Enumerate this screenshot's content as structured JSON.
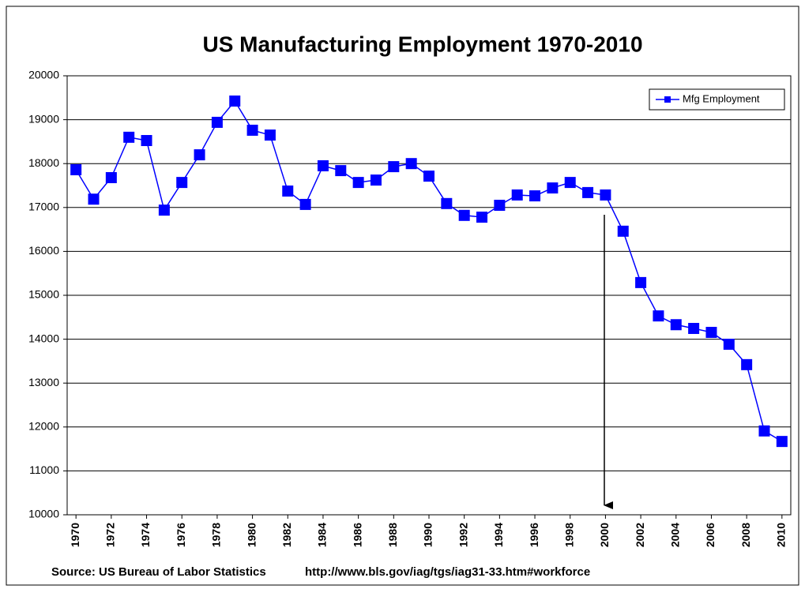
{
  "chart_data": {
    "type": "line",
    "title": "US Manufacturing Employment 1970-2010",
    "source": "Source: US Bureau of Labor Statistics",
    "source_url": "http://www.bls.gov/iag/tgs/iag31-33.htm#workforce",
    "x": [
      1970,
      1971,
      1972,
      1973,
      1974,
      1975,
      1976,
      1977,
      1978,
      1979,
      1980,
      1981,
      1982,
      1983,
      1984,
      1985,
      1986,
      1987,
      1988,
      1989,
      1990,
      1991,
      1992,
      1993,
      1994,
      1995,
      1996,
      1997,
      1998,
      1999,
      2000,
      2001,
      2002,
      2003,
      2004,
      2005,
      2006,
      2007,
      2008,
      2009,
      2010
    ],
    "series": [
      {
        "name": "Mfg Employment",
        "color": "#0000ff",
        "values": [
          17860,
          17190,
          17680,
          18600,
          18525,
          16940,
          17570,
          18200,
          18940,
          19425,
          18760,
          18650,
          17375,
          17070,
          17950,
          17840,
          17570,
          17625,
          17930,
          18000,
          17715,
          17090,
          16820,
          16780,
          17050,
          17285,
          17265,
          17445,
          17570,
          17340,
          17285,
          16460,
          15290,
          14530,
          14330,
          14245,
          14155,
          13885,
          13420,
          11910,
          11670
        ]
      }
    ],
    "xlim": [
      1969.5,
      2010.5
    ],
    "xticks": [
      1970,
      1972,
      1974,
      1976,
      1978,
      1980,
      1982,
      1984,
      1986,
      1988,
      1990,
      1992,
      1994,
      1996,
      1998,
      2000,
      2002,
      2004,
      2006,
      2008,
      2010
    ],
    "ylim": [
      10000,
      20000
    ],
    "yticks": [
      10000,
      11000,
      12000,
      13000,
      14000,
      15000,
      16000,
      17000,
      18000,
      19000,
      20000
    ],
    "grid": true,
    "legend": "upper right"
  }
}
